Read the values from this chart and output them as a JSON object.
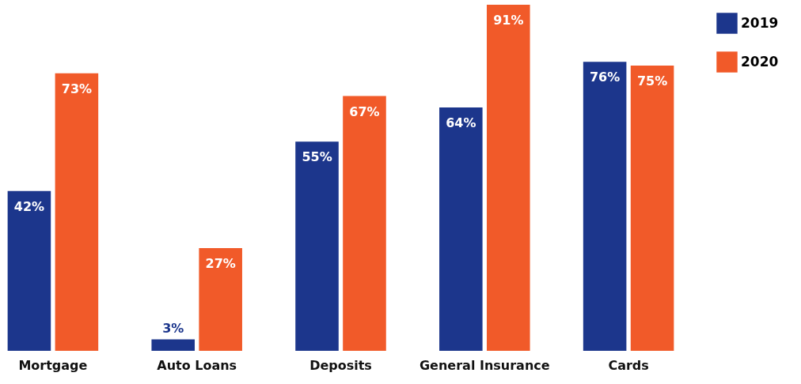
{
  "chart_data": {
    "type": "bar",
    "categories": [
      "Mortgage",
      "Auto Loans",
      "Deposits",
      "General Insurance",
      "Cards"
    ],
    "series": [
      {
        "name": "2019",
        "color": "#1c368c",
        "values": [
          42,
          3,
          55,
          64,
          76
        ],
        "value_labels": [
          "42%",
          "3%",
          "55%",
          "64%",
          "76%"
        ]
      },
      {
        "name": "2020",
        "color": "#f15a29",
        "values": [
          73,
          27,
          67,
          91,
          75
        ],
        "value_labels": [
          "73%",
          "27%",
          "67%",
          "91%",
          "75%"
        ]
      }
    ],
    "legend": "right"
  }
}
